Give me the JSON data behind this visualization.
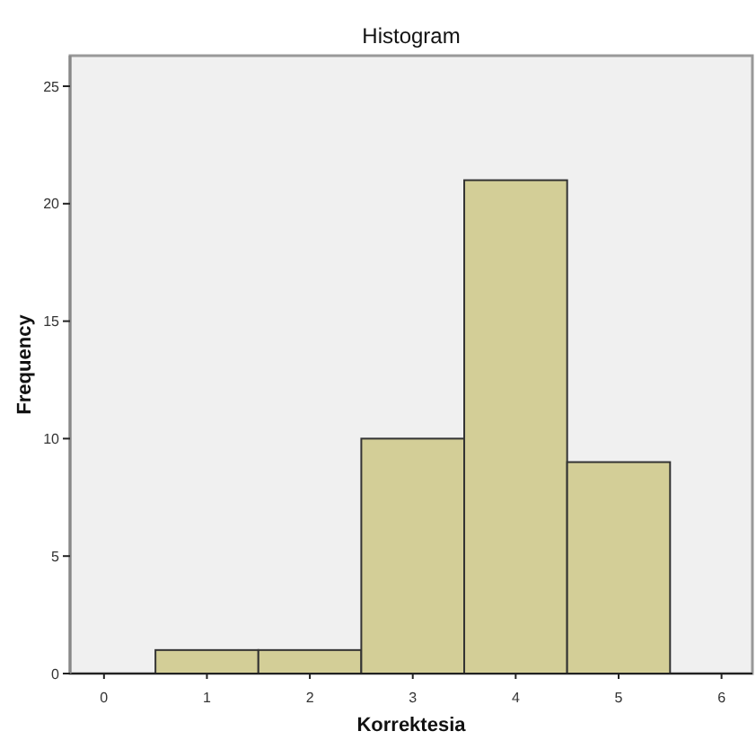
{
  "chart_data": {
    "type": "histogram",
    "title": "Histogram",
    "xlabel": "Korrektesia",
    "ylabel": "Frequency",
    "bins": [
      0.5,
      1.5,
      2.5,
      3.5,
      4.5,
      5.5
    ],
    "values": [
      1,
      1,
      10,
      21,
      9
    ],
    "color": "#d3ce97",
    "xlim": [
      -0.33,
      6.3
    ],
    "xticks": [
      0,
      1,
      2,
      3,
      4,
      5,
      6
    ],
    "ylim": [
      0,
      26.3
    ],
    "yticks": [
      0,
      5,
      10,
      15,
      20,
      25
    ],
    "grid": false
  }
}
